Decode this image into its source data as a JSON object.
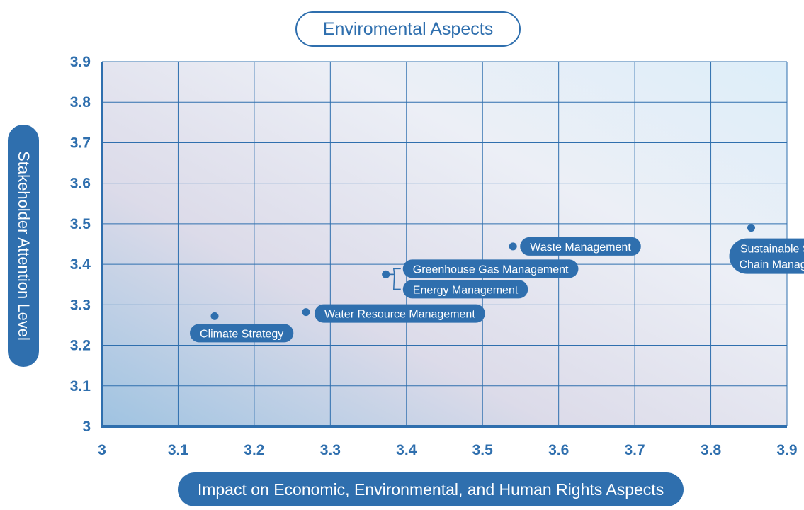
{
  "chart_data": {
    "type": "scatter",
    "title": "Enviromental Aspects",
    "xlabel": "Impact on Economic, Environmental, and Human Rights Aspects",
    "ylabel": "Stakeholder Attention Level",
    "xlim": [
      3,
      3.9
    ],
    "ylim": [
      3,
      3.9
    ],
    "xticks": [
      "3",
      "3.1",
      "3.2",
      "3.3",
      "3.4",
      "3.5",
      "3.6",
      "3.7",
      "3.8",
      "3.9"
    ],
    "yticks": [
      "3",
      "3.1",
      "3.2",
      "3.3",
      "3.4",
      "3.5",
      "3.6",
      "3.7",
      "3.8",
      "3.9"
    ],
    "grid": true,
    "points": [
      {
        "label": "Climate Strategy",
        "x": 3.148,
        "y": 3.272
      },
      {
        "label": "Water Resource Management",
        "x": 3.268,
        "y": 3.282
      },
      {
        "label": "Greenhouse Gas Management",
        "x": 3.373,
        "y": 3.375
      },
      {
        "label": "Energy Management",
        "x": 3.373,
        "y": 3.375
      },
      {
        "label": "Waste Management",
        "x": 3.54,
        "y": 3.444
      },
      {
        "label": "Sustainable Supply Chain Management",
        "x": 3.853,
        "y": 3.49
      }
    ]
  },
  "colors": {
    "accent": "#2f6fae",
    "grid": "#2f6fae",
    "label_bg": "#2f6fae",
    "plot_gradient": [
      "#9fc3e1",
      "#dcdbe9",
      "#eceff6",
      "#ddeef9"
    ]
  }
}
